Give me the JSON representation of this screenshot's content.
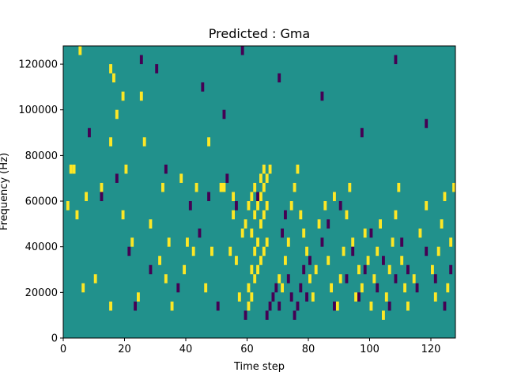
{
  "chart_data": {
    "type": "heatmap",
    "title": "Predicted : Gma",
    "xlabel": "Time step",
    "ylabel": "Frequency (Hz)",
    "xlim": [
      0,
      128
    ],
    "ylim": [
      0,
      128000
    ],
    "x_ticks": [
      0,
      20,
      40,
      60,
      80,
      100,
      120
    ],
    "y_ticks": [
      0,
      20000,
      40000,
      60000,
      80000,
      100000,
      120000
    ],
    "x_tick_labels": [
      "0",
      "20",
      "40",
      "60",
      "80",
      "100",
      "120"
    ],
    "y_tick_labels": [
      "0",
      "20000",
      "40000",
      "60000",
      "80000",
      "100000",
      "120000"
    ],
    "grid": false,
    "colormap": "viridis",
    "colors": {
      "low": "#440154",
      "mid": "#21918c",
      "high": "#fde725"
    },
    "background_value": 0,
    "value_scale": {
      "low": -1,
      "mid": 0,
      "high": 1
    },
    "bins": {
      "time_steps": 128,
      "frequency_bins": 32,
      "bin_hz": 4000
    },
    "cells": [
      [
        1,
        56000,
        1
      ],
      [
        2,
        72000,
        1
      ],
      [
        3,
        72000,
        1
      ],
      [
        4,
        52000,
        1
      ],
      [
        5,
        124000,
        1
      ],
      [
        6,
        20000,
        1
      ],
      [
        7,
        60000,
        1
      ],
      [
        10,
        24000,
        1
      ],
      [
        12,
        64000,
        1
      ],
      [
        15,
        12000,
        1
      ],
      [
        15,
        84000,
        1
      ],
      [
        15,
        116000,
        1
      ],
      [
        16,
        112000,
        1
      ],
      [
        17,
        96000,
        1
      ],
      [
        19,
        104000,
        1
      ],
      [
        19,
        52000,
        1
      ],
      [
        20,
        72000,
        1
      ],
      [
        22,
        40000,
        1
      ],
      [
        24,
        16000,
        1
      ],
      [
        25,
        104000,
        1
      ],
      [
        26,
        84000,
        1
      ],
      [
        28,
        48000,
        1
      ],
      [
        31,
        32000,
        1
      ],
      [
        32,
        64000,
        1
      ],
      [
        33,
        24000,
        1
      ],
      [
        34,
        40000,
        1
      ],
      [
        35,
        12000,
        1
      ],
      [
        38,
        68000,
        1
      ],
      [
        39,
        28000,
        1
      ],
      [
        40,
        40000,
        1
      ],
      [
        42,
        36000,
        1
      ],
      [
        43,
        64000,
        1
      ],
      [
        46,
        20000,
        1
      ],
      [
        47,
        84000,
        1
      ],
      [
        48,
        36000,
        1
      ],
      [
        51,
        64000,
        1
      ],
      [
        52,
        64000,
        1
      ],
      [
        54,
        36000,
        1
      ],
      [
        55,
        52000,
        1
      ],
      [
        55,
        60000,
        1
      ],
      [
        56,
        32000,
        1
      ],
      [
        57,
        16000,
        1
      ],
      [
        58,
        44000,
        1
      ],
      [
        59,
        48000,
        1
      ],
      [
        60,
        56000,
        1
      ],
      [
        61,
        60000,
        1
      ],
      [
        62,
        64000,
        1
      ],
      [
        64,
        68000,
        1
      ],
      [
        65,
        72000,
        1
      ],
      [
        60,
        12000,
        1
      ],
      [
        61,
        16000,
        1
      ],
      [
        62,
        24000,
        1
      ],
      [
        63,
        28000,
        1
      ],
      [
        64,
        32000,
        1
      ],
      [
        65,
        36000,
        1
      ],
      [
        66,
        40000,
        1
      ],
      [
        60,
        20000,
        1
      ],
      [
        61,
        28000,
        1
      ],
      [
        62,
        36000,
        1
      ],
      [
        63,
        40000,
        1
      ],
      [
        64,
        48000,
        1
      ],
      [
        65,
        52000,
        1
      ],
      [
        66,
        56000,
        1
      ],
      [
        61,
        44000,
        1
      ],
      [
        62,
        52000,
        1
      ],
      [
        63,
        56000,
        1
      ],
      [
        64,
        60000,
        1
      ],
      [
        65,
        64000,
        1
      ],
      [
        66,
        68000,
        1
      ],
      [
        67,
        72000,
        1
      ],
      [
        70,
        24000,
        1
      ],
      [
        71,
        20000,
        1
      ],
      [
        72,
        32000,
        1
      ],
      [
        73,
        40000,
        1
      ],
      [
        74,
        56000,
        1
      ],
      [
        75,
        64000,
        1
      ],
      [
        76,
        72000,
        1
      ],
      [
        77,
        52000,
        1
      ],
      [
        78,
        44000,
        1
      ],
      [
        79,
        36000,
        1
      ],
      [
        80,
        24000,
        1
      ],
      [
        81,
        16000,
        1
      ],
      [
        82,
        28000,
        1
      ],
      [
        83,
        48000,
        1
      ],
      [
        85,
        56000,
        1
      ],
      [
        86,
        32000,
        1
      ],
      [
        87,
        20000,
        1
      ],
      [
        88,
        60000,
        1
      ],
      [
        89,
        12000,
        1
      ],
      [
        90,
        24000,
        1
      ],
      [
        91,
        36000,
        1
      ],
      [
        92,
        52000,
        1
      ],
      [
        93,
        64000,
        1
      ],
      [
        94,
        40000,
        1
      ],
      [
        95,
        16000,
        1
      ],
      [
        96,
        28000,
        1
      ],
      [
        97,
        20000,
        1
      ],
      [
        98,
        44000,
        1
      ],
      [
        99,
        32000,
        1
      ],
      [
        100,
        12000,
        1
      ],
      [
        101,
        24000,
        1
      ],
      [
        102,
        36000,
        1
      ],
      [
        103,
        48000,
        1
      ],
      [
        104,
        8000,
        1
      ],
      [
        105,
        16000,
        1
      ],
      [
        106,
        28000,
        1
      ],
      [
        107,
        40000,
        1
      ],
      [
        108,
        52000,
        1
      ],
      [
        109,
        64000,
        1
      ],
      [
        110,
        32000,
        1
      ],
      [
        111,
        20000,
        1
      ],
      [
        112,
        12000,
        1
      ],
      [
        114,
        24000,
        1
      ],
      [
        116,
        44000,
        1
      ],
      [
        118,
        56000,
        1
      ],
      [
        120,
        28000,
        1
      ],
      [
        121,
        16000,
        1
      ],
      [
        122,
        36000,
        1
      ],
      [
        123,
        48000,
        1
      ],
      [
        124,
        60000,
        1
      ],
      [
        125,
        20000,
        1
      ],
      [
        126,
        40000,
        1
      ],
      [
        127,
        64000,
        1
      ],
      [
        8,
        88000,
        -1
      ],
      [
        12,
        60000,
        -1
      ],
      [
        17,
        68000,
        -1
      ],
      [
        21,
        36000,
        -1
      ],
      [
        23,
        12000,
        -1
      ],
      [
        28,
        28000,
        -1
      ],
      [
        33,
        72000,
        -1
      ],
      [
        37,
        20000,
        -1
      ],
      [
        41,
        56000,
        -1
      ],
      [
        44,
        44000,
        -1
      ],
      [
        47,
        60000,
        -1
      ],
      [
        50,
        12000,
        -1
      ],
      [
        53,
        68000,
        -1
      ],
      [
        56,
        56000,
        -1
      ],
      [
        59,
        8000,
        -1
      ],
      [
        63,
        60000,
        -1
      ],
      [
        66,
        8000,
        -1
      ],
      [
        67,
        12000,
        -1
      ],
      [
        68,
        16000,
        -1
      ],
      [
        69,
        20000,
        -1
      ],
      [
        70,
        12000,
        -1
      ],
      [
        71,
        44000,
        -1
      ],
      [
        72,
        52000,
        -1
      ],
      [
        73,
        24000,
        -1
      ],
      [
        74,
        16000,
        -1
      ],
      [
        75,
        8000,
        -1
      ],
      [
        76,
        12000,
        -1
      ],
      [
        77,
        20000,
        -1
      ],
      [
        78,
        28000,
        -1
      ],
      [
        79,
        16000,
        -1
      ],
      [
        80,
        32000,
        -1
      ],
      [
        84,
        40000,
        -1
      ],
      [
        86,
        48000,
        -1
      ],
      [
        88,
        12000,
        -1
      ],
      [
        90,
        56000,
        -1
      ],
      [
        92,
        24000,
        -1
      ],
      [
        94,
        36000,
        -1
      ],
      [
        96,
        16000,
        -1
      ],
      [
        98,
        28000,
        -1
      ],
      [
        100,
        44000,
        -1
      ],
      [
        102,
        20000,
        -1
      ],
      [
        104,
        32000,
        -1
      ],
      [
        106,
        12000,
        -1
      ],
      [
        108,
        24000,
        -1
      ],
      [
        110,
        40000,
        -1
      ],
      [
        112,
        28000,
        -1
      ],
      [
        115,
        20000,
        -1
      ],
      [
        118,
        36000,
        -1
      ],
      [
        121,
        24000,
        -1
      ],
      [
        124,
        12000,
        -1
      ],
      [
        126,
        28000,
        -1
      ],
      [
        30,
        116000,
        -1
      ],
      [
        45,
        108000,
        -1
      ],
      [
        52,
        96000,
        -1
      ],
      [
        70,
        112000,
        -1
      ],
      [
        84,
        104000,
        -1
      ],
      [
        97,
        88000,
        -1
      ],
      [
        108,
        120000,
        -1
      ],
      [
        118,
        92000,
        -1
      ],
      [
        58,
        124000,
        -1
      ],
      [
        25,
        120000,
        -1
      ]
    ]
  }
}
